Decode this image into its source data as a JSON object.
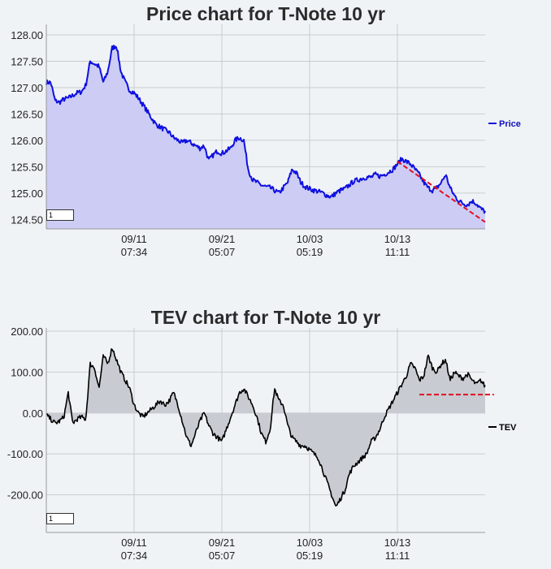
{
  "chart_data": [
    {
      "type": "area",
      "title": "Price chart for T-Note 10 yr",
      "legend": {
        "label": "Price",
        "placement": "right"
      },
      "zoom_value": "1",
      "ylim": [
        124.32,
        128.2
      ],
      "yticks": [
        "128.00",
        "127.50",
        "127.00",
        "126.50",
        "126.00",
        "125.50",
        "125.00",
        "124.50"
      ],
      "ytick_values": [
        128.0,
        127.5,
        127.0,
        126.5,
        126.0,
        125.5,
        125.0,
        124.5
      ],
      "xticks": [
        {
          "date": "09/11",
          "time": "07:34",
          "pos": 0.2
        },
        {
          "date": "09/21",
          "time": "05:07",
          "pos": 0.4
        },
        {
          "date": "10/03",
          "time": "05:19",
          "pos": 0.6
        },
        {
          "date": "10/13",
          "time": "11:11",
          "pos": 0.8
        }
      ],
      "colors": {
        "line": "#1010e0",
        "fill": "#ccccf4",
        "trend": "#e01020"
      },
      "trendline": {
        "from": [
          0.8,
          125.6
        ],
        "to": [
          1.0,
          124.45
        ]
      },
      "series": [
        {
          "name": "Price",
          "x": [
            0,
            0.01,
            0.02,
            0.03,
            0.04,
            0.05,
            0.06,
            0.07,
            0.08,
            0.09,
            0.1,
            0.11,
            0.12,
            0.13,
            0.14,
            0.15,
            0.16,
            0.17,
            0.18,
            0.19,
            0.2,
            0.21,
            0.22,
            0.23,
            0.24,
            0.25,
            0.26,
            0.27,
            0.28,
            0.29,
            0.3,
            0.31,
            0.32,
            0.33,
            0.34,
            0.35,
            0.36,
            0.37,
            0.38,
            0.39,
            0.4,
            0.41,
            0.42,
            0.43,
            0.44,
            0.45,
            0.46,
            0.47,
            0.48,
            0.49,
            0.5,
            0.51,
            0.52,
            0.53,
            0.54,
            0.55,
            0.56,
            0.57,
            0.58,
            0.59,
            0.6,
            0.61,
            0.62,
            0.63,
            0.64,
            0.65,
            0.66,
            0.67,
            0.68,
            0.69,
            0.7,
            0.71,
            0.72,
            0.73,
            0.74,
            0.75,
            0.76,
            0.77,
            0.78,
            0.79,
            0.8,
            0.81,
            0.82,
            0.83,
            0.84,
            0.85,
            0.86,
            0.87,
            0.88,
            0.89,
            0.9,
            0.91,
            0.92,
            0.93,
            0.94,
            0.95,
            0.96,
            0.97,
            0.98,
            0.99,
            1.0
          ],
          "values": [
            127.1,
            127.1,
            126.75,
            126.72,
            126.78,
            126.8,
            126.85,
            126.9,
            126.92,
            127.05,
            127.5,
            127.45,
            127.4,
            127.1,
            127.3,
            127.75,
            127.8,
            127.3,
            127.1,
            126.95,
            126.9,
            126.8,
            126.68,
            126.55,
            126.42,
            126.3,
            126.25,
            126.2,
            126.15,
            126.05,
            126.0,
            125.95,
            126.0,
            125.95,
            125.9,
            125.85,
            125.9,
            125.62,
            125.72,
            125.8,
            125.75,
            125.8,
            125.85,
            126.0,
            126.05,
            126.0,
            125.45,
            125.25,
            125.2,
            125.15,
            125.12,
            125.1,
            125.05,
            125.0,
            125.1,
            125.2,
            125.45,
            125.38,
            125.2,
            125.12,
            125.08,
            125.05,
            125.03,
            125.0,
            124.95,
            124.93,
            125.0,
            125.05,
            125.08,
            125.15,
            125.22,
            125.25,
            125.28,
            125.3,
            125.3,
            125.35,
            125.32,
            125.35,
            125.4,
            125.45,
            125.55,
            125.65,
            125.6,
            125.55,
            125.45,
            125.35,
            125.2,
            125.1,
            125.05,
            125.1,
            125.2,
            125.35,
            125.1,
            124.95,
            124.85,
            124.8,
            124.78,
            124.85,
            124.8,
            124.7,
            124.65
          ]
        }
      ]
    },
    {
      "type": "area",
      "title": "TEV chart for T-Note 10 yr",
      "legend": {
        "label": "TEV",
        "placement": "right"
      },
      "zoom_value": "1",
      "ylim": [
        -292,
        208
      ],
      "yticks": [
        "200.00",
        "100.00",
        "0.00",
        "-100.00",
        "-200.00"
      ],
      "ytick_values": [
        200,
        100,
        0,
        -100,
        -200
      ],
      "xticks": [
        {
          "date": "09/11",
          "time": "07:34",
          "pos": 0.2
        },
        {
          "date": "09/21",
          "time": "05:07",
          "pos": 0.4
        },
        {
          "date": "10/03",
          "time": "05:19",
          "pos": 0.6
        },
        {
          "date": "10/13",
          "time": "11:11",
          "pos": 0.8
        }
      ],
      "colors": {
        "line": "#000000",
        "fill": "#c8ccd2",
        "trend": "#e01020"
      },
      "trendline": {
        "from": [
          0.85,
          45
        ],
        "to": [
          1.02,
          45
        ]
      },
      "series": [
        {
          "name": "TEV",
          "x": [
            0,
            0.01,
            0.02,
            0.03,
            0.04,
            0.05,
            0.06,
            0.07,
            0.08,
            0.09,
            0.1,
            0.11,
            0.12,
            0.13,
            0.14,
            0.15,
            0.16,
            0.17,
            0.18,
            0.19,
            0.2,
            0.21,
            0.22,
            0.23,
            0.24,
            0.25,
            0.26,
            0.27,
            0.28,
            0.29,
            0.3,
            0.31,
            0.32,
            0.33,
            0.34,
            0.35,
            0.36,
            0.37,
            0.38,
            0.39,
            0.4,
            0.41,
            0.42,
            0.43,
            0.44,
            0.45,
            0.46,
            0.47,
            0.48,
            0.49,
            0.5,
            0.51,
            0.52,
            0.53,
            0.54,
            0.55,
            0.56,
            0.57,
            0.58,
            0.59,
            0.6,
            0.61,
            0.62,
            0.63,
            0.64,
            0.65,
            0.66,
            0.67,
            0.68,
            0.69,
            0.7,
            0.71,
            0.72,
            0.73,
            0.74,
            0.75,
            0.76,
            0.77,
            0.78,
            0.79,
            0.8,
            0.81,
            0.82,
            0.83,
            0.84,
            0.85,
            0.86,
            0.87,
            0.88,
            0.89,
            0.9,
            0.91,
            0.92,
            0.93,
            0.94,
            0.95,
            0.96,
            0.97,
            0.98,
            0.99,
            1.0
          ],
          "values": [
            -5,
            -15,
            -25,
            -20,
            -10,
            50,
            -25,
            -15,
            -10,
            -15,
            120,
            110,
            60,
            140,
            120,
            160,
            130,
            100,
            80,
            60,
            20,
            0,
            -10,
            0,
            10,
            20,
            30,
            20,
            30,
            50,
            20,
            -20,
            -60,
            -80,
            -50,
            -20,
            0,
            -30,
            -50,
            -60,
            -70,
            -40,
            -10,
            20,
            50,
            60,
            40,
            20,
            -10,
            -50,
            -70,
            -40,
            60,
            30,
            20,
            -30,
            -60,
            -70,
            -80,
            -80,
            -90,
            -100,
            -110,
            -140,
            -170,
            -200,
            -230,
            -210,
            -190,
            -150,
            -130,
            -120,
            -110,
            -100,
            -70,
            -60,
            -40,
            -10,
            10,
            30,
            50,
            70,
            90,
            120,
            110,
            80,
            90,
            140,
            110,
            100,
            120,
            130,
            80,
            100,
            90,
            85,
            95,
            80,
            70,
            80,
            65
          ]
        }
      ]
    }
  ]
}
